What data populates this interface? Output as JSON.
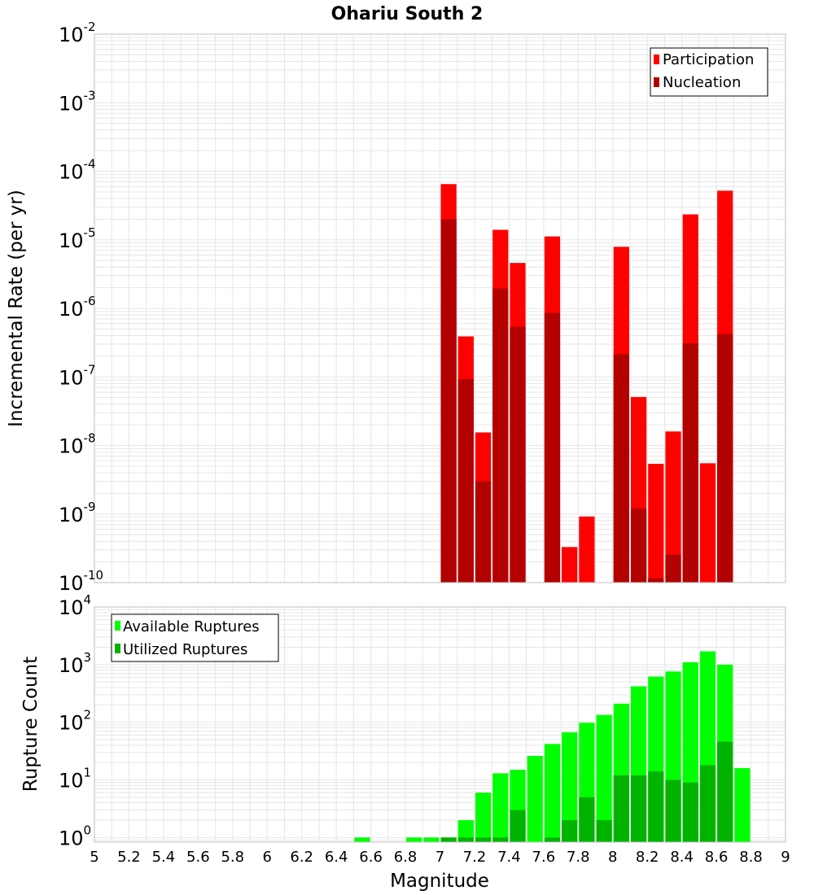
{
  "colors": {
    "participation": "#ff0000",
    "nucleation": "#b30000",
    "available": "#00ff00",
    "utilized": "#00b300",
    "grid": "#e6e6e6",
    "frame": "#bfbfbf"
  },
  "chart_data": [
    {
      "type": "bar",
      "title": "Ohariu South 2",
      "xlabel": "",
      "ylabel": "Incremental Rate (per yr)",
      "yscale": "log",
      "xlim": [
        5,
        9
      ],
      "ylim_exp": [
        -10,
        -2
      ],
      "ytick_base": "10",
      "ytick_exponents": [
        "-10",
        "-9",
        "-8",
        "-7",
        "-6",
        "-5",
        "-4",
        "-3",
        "-2"
      ],
      "grid": true,
      "legend_position": "top-right",
      "bin_width": 0.1,
      "series": [
        {
          "name": "Participation",
          "x": [
            7.05,
            7.15,
            7.25,
            7.35,
            7.45,
            7.65,
            7.75,
            7.85,
            8.05,
            8.15,
            8.25,
            8.35,
            8.45,
            8.55,
            8.65
          ],
          "values": [
            6.5e-05,
            3.9e-07,
            1.55e-08,
            1.4e-05,
            4.6e-06,
            1.12e-05,
            3.3e-10,
            9.2e-10,
            7.9e-06,
            5.1e-08,
            5.4e-09,
            1.6e-08,
            2.35e-05,
            5.5e-09,
            5.2e-05
          ]
        },
        {
          "name": "Nucleation",
          "x": [
            7.05,
            7.15,
            7.25,
            7.35,
            7.45,
            7.65,
            8.05,
            8.15,
            8.25,
            8.35,
            8.45,
            8.65
          ],
          "values": [
            2e-05,
            9.3e-08,
            3e-09,
            1.95e-06,
            5.4e-07,
            8.6e-07,
            2.15e-07,
            1.2e-09,
            1.15e-10,
            2.55e-10,
            3.1e-07,
            4.2e-07
          ]
        }
      ]
    },
    {
      "type": "bar",
      "title": "",
      "xlabel": "Magnitude",
      "ylabel": "Rupture Count",
      "yscale": "log",
      "xlim": [
        5,
        9
      ],
      "xticks": [
        "5",
        "5.2",
        "5.4",
        "5.6",
        "5.8",
        "6",
        "6.2",
        "6.4",
        "6.6",
        "6.8",
        "7",
        "7.2",
        "7.4",
        "7.6",
        "7.8",
        "8",
        "8.2",
        "8.4",
        "8.6",
        "8.8",
        "9"
      ],
      "ylim_exp": [
        -0.08,
        4
      ],
      "ytick_base": "10",
      "ytick_exponents": [
        "0",
        "1",
        "2",
        "3",
        "4"
      ],
      "grid": true,
      "legend_position": "top-left",
      "bin_width": 0.1,
      "series": [
        {
          "name": "Available Ruptures",
          "x": [
            6.55,
            6.85,
            6.95,
            7.05,
            7.15,
            7.25,
            7.35,
            7.45,
            7.55,
            7.65,
            7.75,
            7.85,
            7.95,
            8.05,
            8.15,
            8.25,
            8.35,
            8.45,
            8.55,
            8.65,
            8.75
          ],
          "values": [
            1,
            1,
            1,
            1,
            2,
            6,
            13,
            15,
            26,
            42,
            67,
            98,
            134,
            210,
            420,
            620,
            760,
            1100,
            1700,
            1000,
            16
          ]
        },
        {
          "name": "Utilized Ruptures",
          "x": [
            7.05,
            7.15,
            7.25,
            7.35,
            7.45,
            7.65,
            7.75,
            7.85,
            7.95,
            8.05,
            8.15,
            8.25,
            8.35,
            8.45,
            8.55,
            8.65
          ],
          "values": [
            1,
            1,
            1,
            1,
            3,
            1,
            2,
            5,
            2,
            12,
            12,
            14,
            10,
            9,
            18,
            46
          ]
        }
      ]
    }
  ]
}
